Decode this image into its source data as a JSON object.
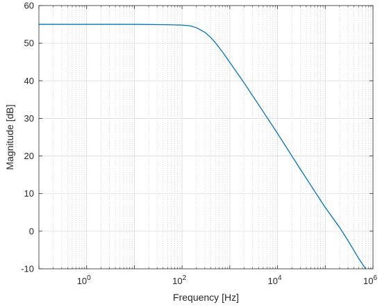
{
  "chart_data": {
    "type": "line",
    "xscale": "log",
    "xlim": [
      0.1,
      1000000
    ],
    "ylim": [
      -10,
      60
    ],
    "xlabel": "Frequency [Hz]",
    "ylabel": "Magnitude [dB]",
    "grid": {
      "major": true,
      "minor": true
    },
    "x_ticks": [
      {
        "base": "10",
        "exp": "0",
        "value": 1
      },
      {
        "base": "10",
        "exp": "2",
        "value": 100
      },
      {
        "base": "10",
        "exp": "4",
        "value": 10000
      },
      {
        "base": "10",
        "exp": "6",
        "value": 1000000
      }
    ],
    "y_ticks": [
      "60",
      "50",
      "40",
      "30",
      "20",
      "10",
      "0",
      "-10"
    ],
    "series": [
      {
        "color": "#0072BD",
        "x": [
          0.1,
          1,
          10,
          50,
          100,
          150,
          200,
          300,
          400,
          500,
          700,
          1000,
          2000,
          5000,
          10000,
          30000,
          100000,
          200000,
          300000,
          500000,
          700000,
          800000
        ],
        "y": [
          55,
          55,
          55,
          54.9,
          54.8,
          54.6,
          54.1,
          52.9,
          51.5,
          50.1,
          47.7,
          44.9,
          39.4,
          31.8,
          26.0,
          16.5,
          6.3,
          1.0,
          -2.5,
          -7.2,
          -10,
          -11
        ]
      }
    ]
  }
}
